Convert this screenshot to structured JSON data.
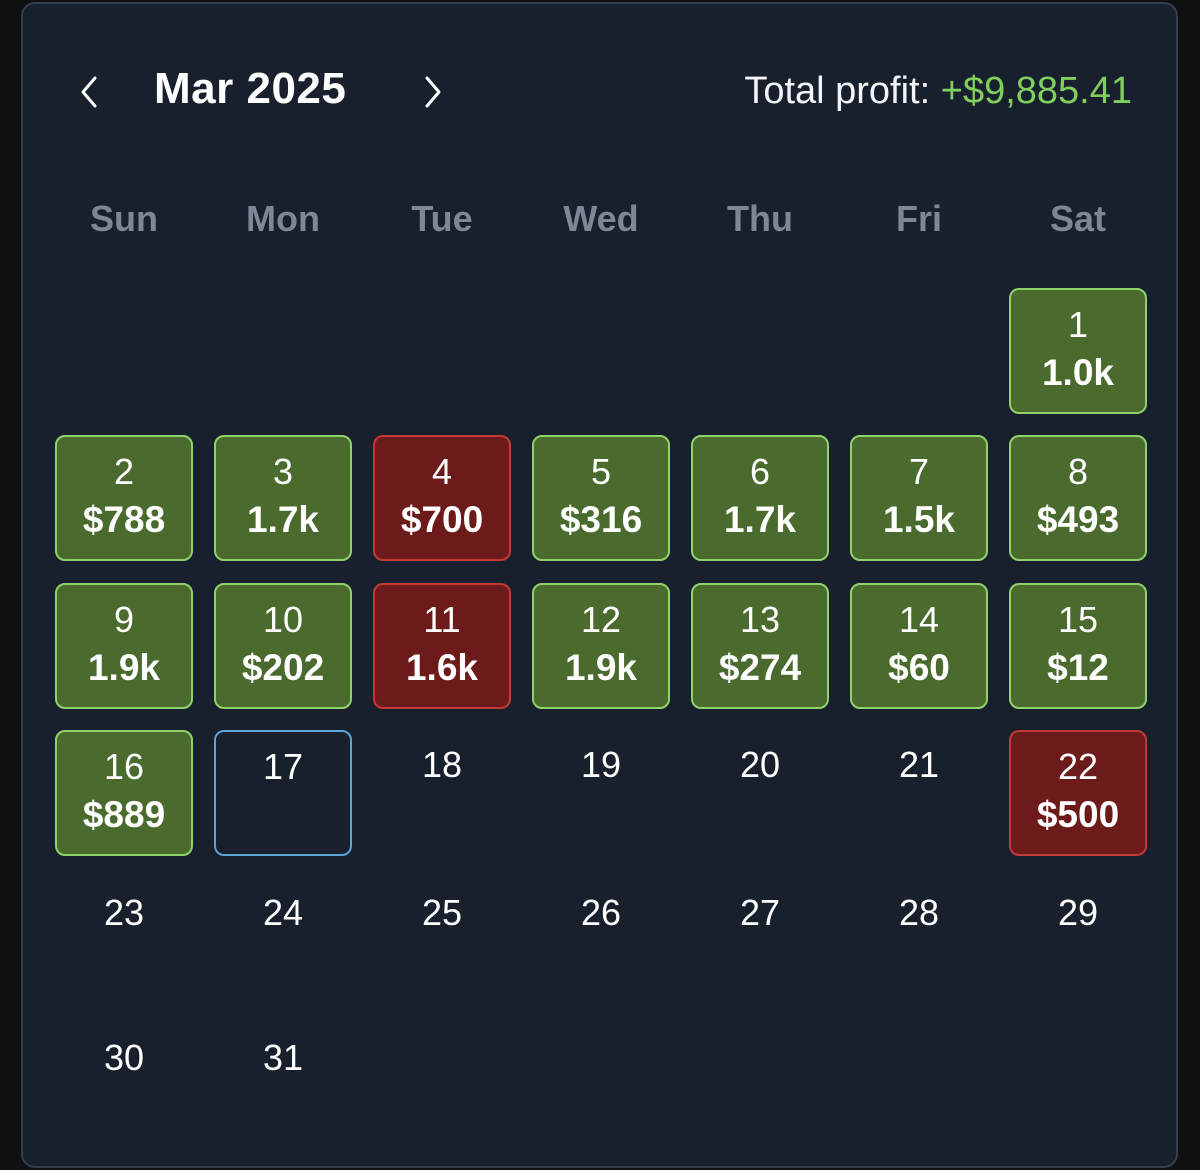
{
  "header": {
    "month_title": "Mar 2025",
    "prev_icon": "chevron-left-icon",
    "next_icon": "chevron-right-icon",
    "total_label": "Total profit:",
    "total_value": "+$9,885.41"
  },
  "colors": {
    "profit_bg": "#4a6b2d",
    "profit_border": "#8fd16a",
    "loss_bg": "#6d1b1a",
    "loss_border": "#c23a36",
    "today_border": "#5aa3d6",
    "total_value": "#7fcf5d"
  },
  "weekdays": [
    "Sun",
    "Mon",
    "Tue",
    "Wed",
    "Thu",
    "Fri",
    "Sat"
  ],
  "first_weekday_index": 6,
  "days": [
    {
      "day": "1",
      "value": "1.0k",
      "status": "profit"
    },
    {
      "day": "2",
      "value": "$788",
      "status": "profit"
    },
    {
      "day": "3",
      "value": "1.7k",
      "status": "profit"
    },
    {
      "day": "4",
      "value": "$700",
      "status": "loss"
    },
    {
      "day": "5",
      "value": "$316",
      "status": "profit"
    },
    {
      "day": "6",
      "value": "1.7k",
      "status": "profit"
    },
    {
      "day": "7",
      "value": "1.5k",
      "status": "profit"
    },
    {
      "day": "8",
      "value": "$493",
      "status": "profit"
    },
    {
      "day": "9",
      "value": "1.9k",
      "status": "profit"
    },
    {
      "day": "10",
      "value": "$202",
      "status": "profit"
    },
    {
      "day": "11",
      "value": "1.6k",
      "status": "loss"
    },
    {
      "day": "12",
      "value": "1.9k",
      "status": "profit"
    },
    {
      "day": "13",
      "value": "$274",
      "status": "profit"
    },
    {
      "day": "14",
      "value": "$60",
      "status": "profit"
    },
    {
      "day": "15",
      "value": "$12",
      "status": "profit"
    },
    {
      "day": "16",
      "value": "$889",
      "status": "profit"
    },
    {
      "day": "17",
      "value": "",
      "status": "today"
    },
    {
      "day": "18",
      "value": "",
      "status": "none"
    },
    {
      "day": "19",
      "value": "",
      "status": "none"
    },
    {
      "day": "20",
      "value": "",
      "status": "none"
    },
    {
      "day": "21",
      "value": "",
      "status": "none"
    },
    {
      "day": "22",
      "value": "$500",
      "status": "loss"
    },
    {
      "day": "23",
      "value": "",
      "status": "none"
    },
    {
      "day": "24",
      "value": "",
      "status": "none"
    },
    {
      "day": "25",
      "value": "",
      "status": "none"
    },
    {
      "day": "26",
      "value": "",
      "status": "none"
    },
    {
      "day": "27",
      "value": "",
      "status": "none"
    },
    {
      "day": "28",
      "value": "",
      "status": "none"
    },
    {
      "day": "29",
      "value": "",
      "status": "none"
    },
    {
      "day": "30",
      "value": "",
      "status": "none"
    },
    {
      "day": "31",
      "value": "",
      "status": "none"
    }
  ]
}
